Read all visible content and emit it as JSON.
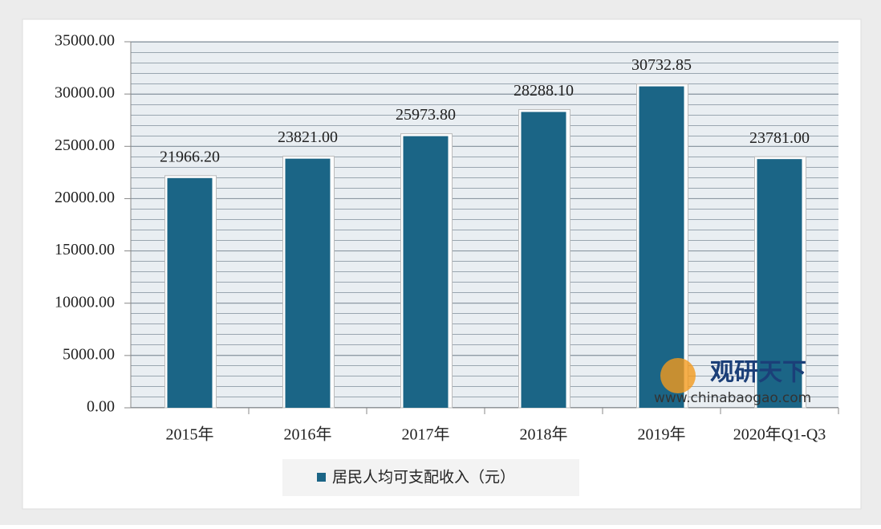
{
  "chart_data": {
    "type": "bar",
    "categories": [
      "2015年",
      "2016年",
      "2017年",
      "2018年",
      "2019年",
      "2020年Q1-Q3"
    ],
    "series": [
      {
        "name": "居民人均可支配收入（元）",
        "color": "#1b6586",
        "values": [
          21966.2,
          23821,
          25973.8,
          28288.1,
          30732.85,
          23781
        ],
        "value_labels": [
          "21966.20",
          "23821.00",
          "25973.80",
          "28288.10",
          "30732.85",
          "23781.00"
        ]
      }
    ],
    "ylim": [
      0,
      35000
    ],
    "yticks": [
      {
        "value": 0,
        "label": "0.00"
      },
      {
        "value": 5000,
        "label": "5000.00"
      },
      {
        "value": 10000,
        "label": "10000.00"
      },
      {
        "value": 15000,
        "label": "15000.00"
      },
      {
        "value": 20000,
        "label": "20000.00"
      },
      {
        "value": 25000,
        "label": "25000.00"
      },
      {
        "value": 30000,
        "label": "30000.00"
      },
      {
        "value": 35000,
        "label": "35000.00"
      }
    ],
    "grid": true,
    "legend": "bottom",
    "watermark": {
      "name": "观研天下",
      "url": "www.chinabaogao.com"
    }
  }
}
